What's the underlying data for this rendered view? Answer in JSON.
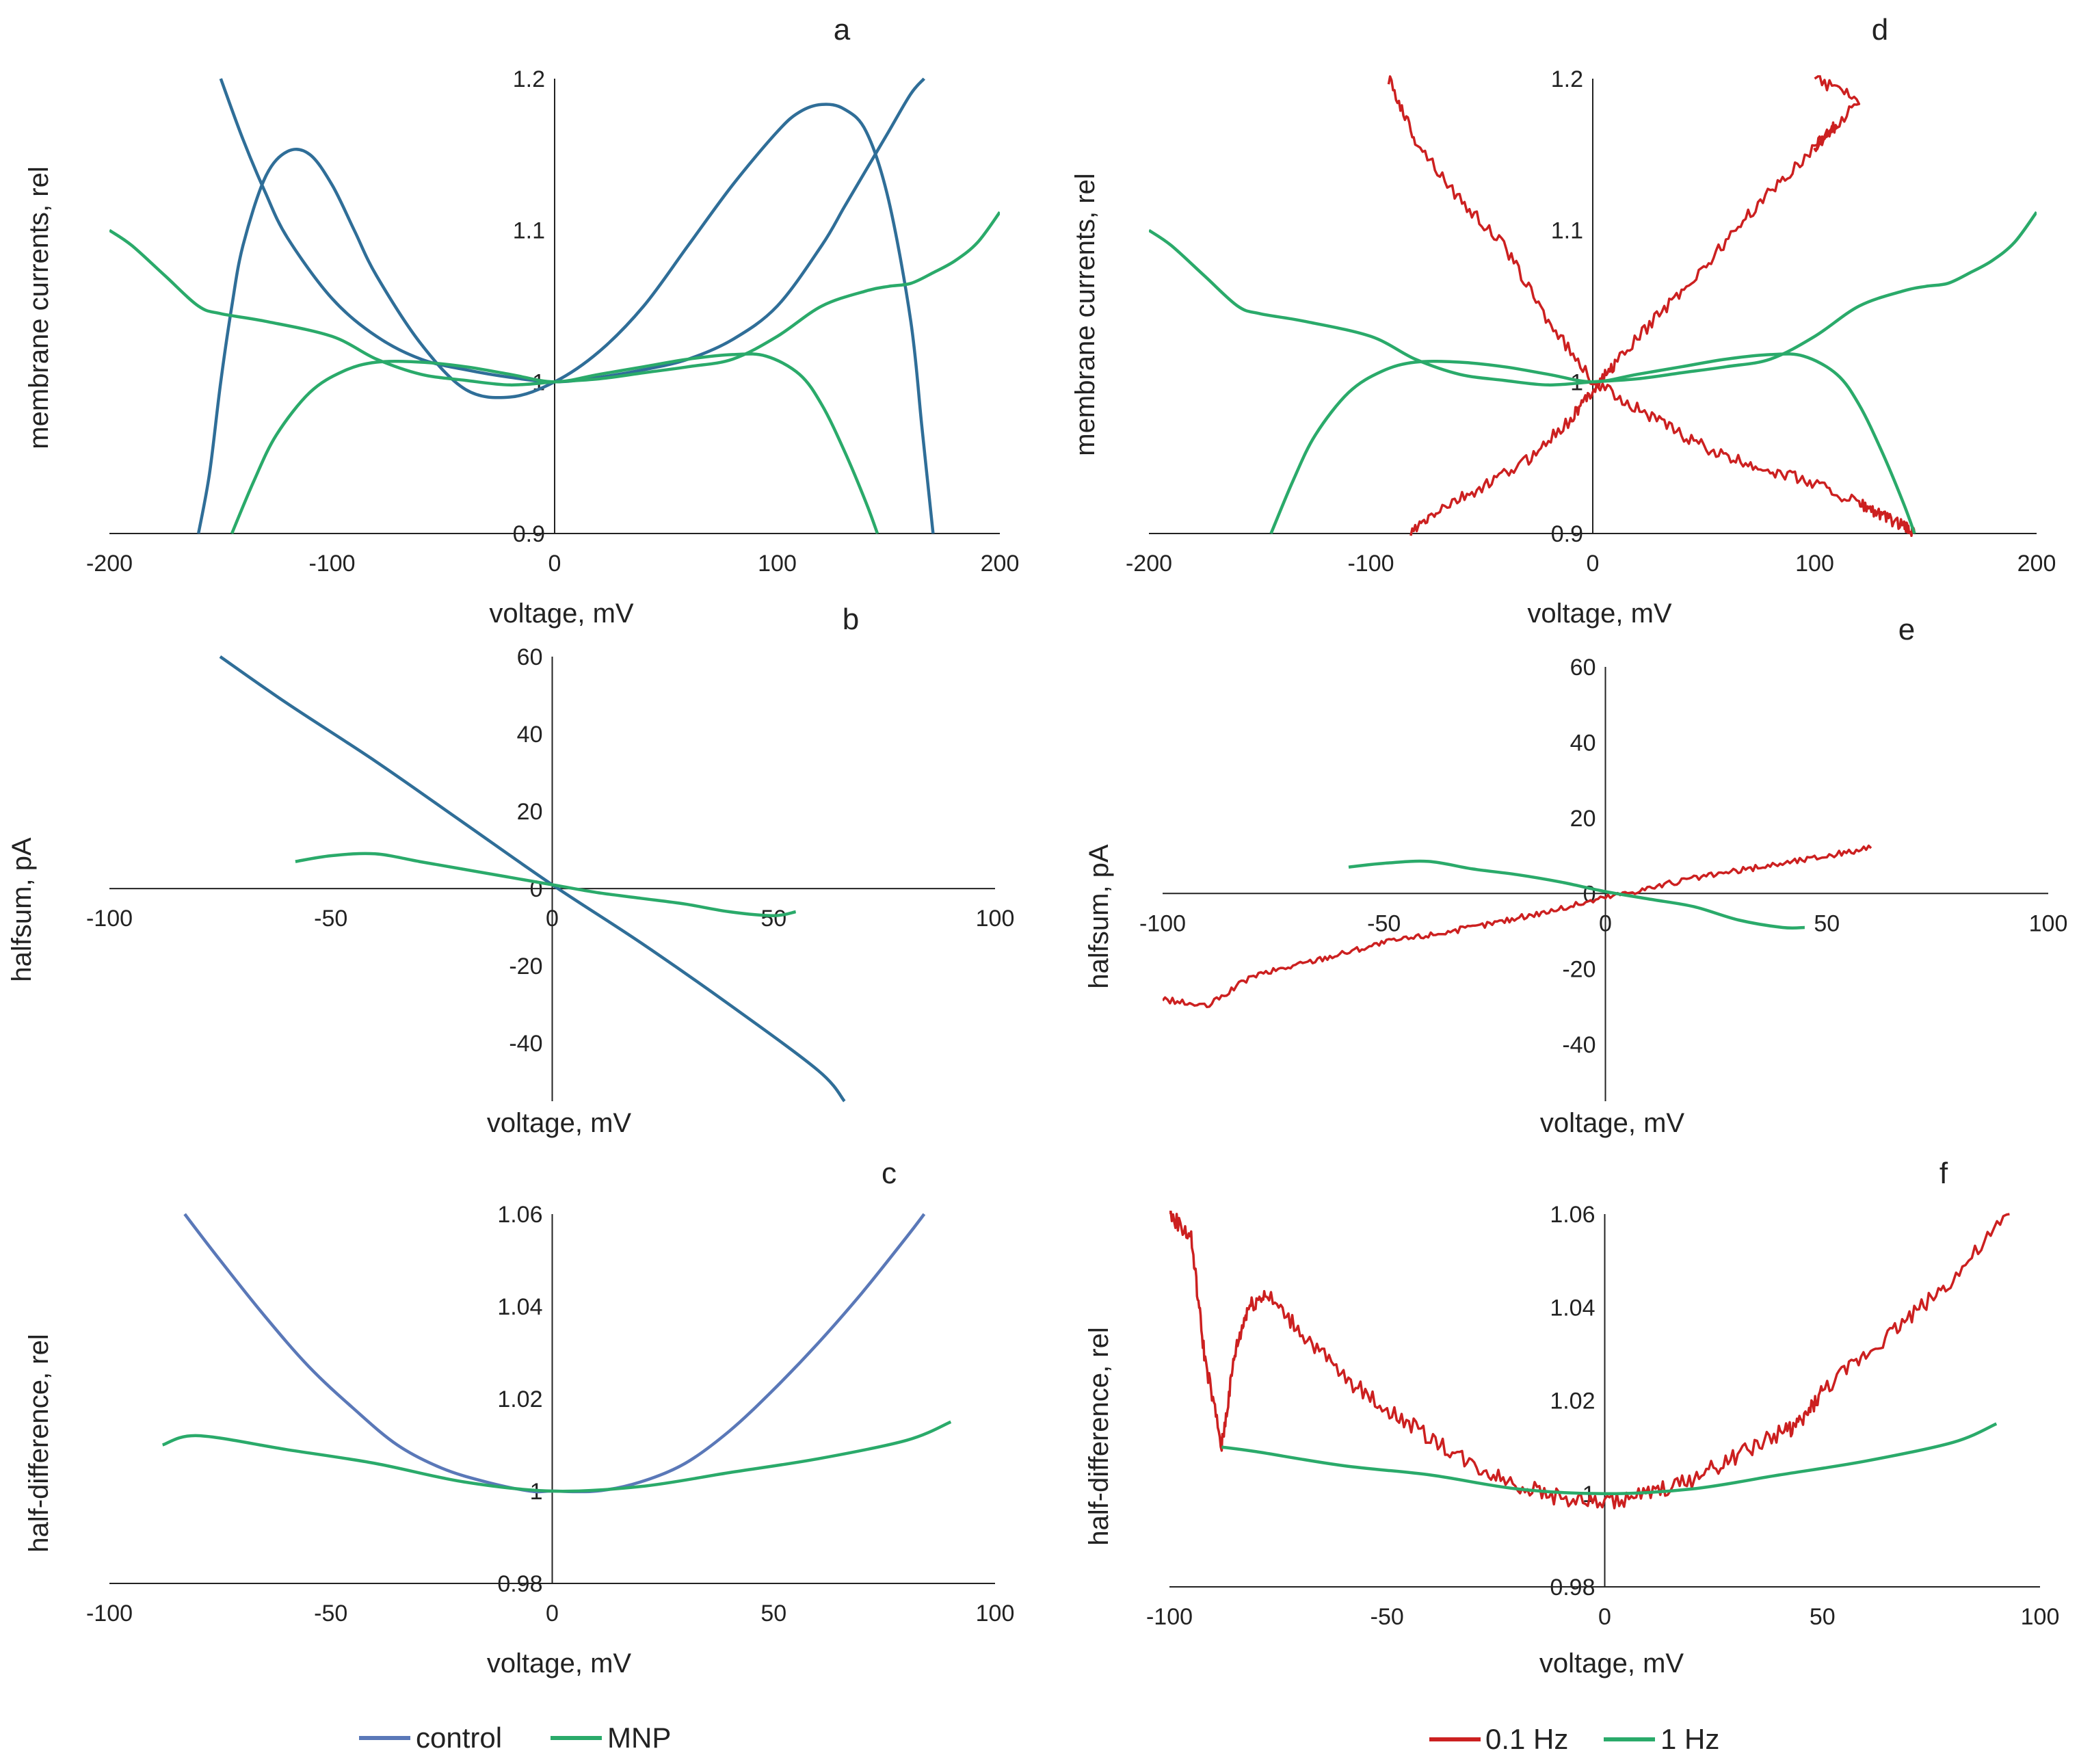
{
  "colors": {
    "control": "#2f6e98",
    "control_light": "#5a78b8",
    "mnp": "#2aaa6a",
    "hz01": "#cc2020",
    "hz1": "#2aaa6a",
    "axis": "#222222"
  },
  "legends": {
    "left": [
      {
        "label": "control",
        "color": "#5a78b8"
      },
      {
        "label": "MNP",
        "color": "#2aaa6a"
      }
    ],
    "right": [
      {
        "label": "0.1 Hz",
        "color": "#cc2020"
      },
      {
        "label": "1 Hz",
        "color": "#2aaa6a"
      }
    ]
  },
  "chart_data": [
    {
      "panel": "a",
      "type": "line",
      "xlabel": "voltage, mV",
      "ylabel": "membrane currents, rel",
      "xlim": [
        -200,
        200
      ],
      "ylim": [
        0.9,
        1.2
      ],
      "xticks": [
        "-200",
        "-100",
        "0",
        "100",
        "200"
      ],
      "yticks": [
        "0.9",
        "1",
        "1.1",
        "1.2"
      ],
      "series": [
        {
          "name": "control",
          "color": "#2f6e98",
          "x": [
            -160,
            -155,
            -150,
            -145,
            -140,
            -130,
            -120,
            -110,
            -100,
            -90,
            -80,
            -60,
            -40,
            -20,
            0,
            20,
            40,
            60,
            80,
            100,
            110,
            120,
            130,
            140,
            150,
            160,
            165,
            170
          ],
          "y": [
            0.9,
            0.94,
            1.0,
            1.05,
            1.09,
            1.135,
            1.152,
            1.15,
            1.13,
            1.1,
            1.07,
            1.025,
            0.995,
            0.99,
            1.0,
            1.02,
            1.05,
            1.09,
            1.13,
            1.165,
            1.178,
            1.183,
            1.18,
            1.165,
            1.12,
            1.04,
            0.97,
            0.9
          ]
        },
        {
          "name": "control",
          "color": "#2f6e98",
          "x": [
            -150,
            -140,
            -130,
            -120,
            -100,
            -80,
            -60,
            -40,
            -20,
            0,
            20,
            40,
            60,
            80,
            100,
            120,
            130,
            140,
            150,
            160,
            166
          ],
          "y": [
            1.2,
            1.16,
            1.125,
            1.095,
            1.055,
            1.03,
            1.015,
            1.008,
            1.003,
            1.0,
            1.003,
            1.008,
            1.015,
            1.028,
            1.05,
            1.09,
            1.115,
            1.14,
            1.165,
            1.19,
            1.2
          ]
        },
        {
          "name": "MNP",
          "color": "#2aaa6a",
          "x": [
            -200,
            -190,
            -175,
            -160,
            -150,
            -130,
            -100,
            -80,
            -60,
            -40,
            -20,
            0,
            20,
            40,
            60,
            80,
            100,
            120,
            140,
            150,
            160,
            170,
            180,
            190,
            200
          ],
          "y": [
            1.1,
            1.09,
            1.07,
            1.05,
            1.045,
            1.04,
            1.03,
            1.015,
            1.005,
            1.001,
            0.998,
            1.0,
            1.002,
            1.006,
            1.01,
            1.015,
            1.03,
            1.05,
            1.06,
            1.063,
            1.065,
            1.072,
            1.08,
            1.092,
            1.112
          ]
        },
        {
          "name": "MNP",
          "color": "#2aaa6a",
          "x": [
            -145,
            -135,
            -125,
            -110,
            -95,
            -80,
            -60,
            -40,
            -20,
            0,
            20,
            40,
            60,
            80,
            95,
            110,
            120,
            130,
            140,
            145
          ],
          "y": [
            0.9,
            0.935,
            0.965,
            0.993,
            1.007,
            1.013,
            1.013,
            1.01,
            1.005,
            1.0,
            1.005,
            1.01,
            1.015,
            1.018,
            1.017,
            1.005,
            0.985,
            0.955,
            0.92,
            0.9
          ]
        }
      ]
    },
    {
      "panel": "b",
      "type": "line",
      "xlabel": "voltage, mV",
      "ylabel": "halfsum, pA",
      "xlim": [
        -100,
        100
      ],
      "ylim": [
        -55,
        60
      ],
      "xticks": [
        "-100",
        "-50",
        "0",
        "50",
        "100"
      ],
      "yticks": [
        "-40",
        "-20",
        "0",
        "20",
        "40",
        "60"
      ],
      "series": [
        {
          "name": "control",
          "color": "#2f6e98",
          "x": [
            -75,
            -60,
            -40,
            -20,
            0,
            20,
            40,
            60,
            66
          ],
          "y": [
            60,
            48,
            33,
            17,
            1,
            -14,
            -30,
            -47,
            -55
          ]
        },
        {
          "name": "MNP",
          "color": "#2aaa6a",
          "x": [
            -58,
            -50,
            -40,
            -30,
            -20,
            -10,
            0,
            10,
            20,
            30,
            40,
            50,
            55
          ],
          "y": [
            7,
            8.5,
            9,
            7,
            5,
            3,
            1,
            -1,
            -2.5,
            -4,
            -6,
            -7,
            -6
          ]
        }
      ]
    },
    {
      "panel": "c",
      "type": "line",
      "xlabel": "voltage, mV",
      "ylabel": "half-difference, rel",
      "xlim": [
        -100,
        100
      ],
      "ylim": [
        0.98,
        1.06
      ],
      "xticks": [
        "-100",
        "-50",
        "0",
        "50",
        "100"
      ],
      "yticks": [
        "0.98",
        "1",
        "1.02",
        "1.04",
        "1.06"
      ],
      "series": [
        {
          "name": "control",
          "color": "#5a78b8",
          "x": [
            -83,
            -75,
            -65,
            -55,
            -45,
            -35,
            -25,
            -15,
            -5,
            0,
            10,
            20,
            30,
            40,
            50,
            60,
            70,
            80,
            84
          ],
          "y": [
            1.06,
            1.05,
            1.038,
            1.027,
            1.018,
            1.01,
            1.005,
            1.002,
            1.0,
            1.0,
            1.0,
            1.002,
            1.006,
            1.013,
            1.022,
            1.032,
            1.043,
            1.055,
            1.06
          ]
        },
        {
          "name": "MNP",
          "color": "#2aaa6a",
          "x": [
            -88,
            -80,
            -60,
            -40,
            -20,
            0,
            20,
            40,
            60,
            80,
            90
          ],
          "y": [
            1.01,
            1.012,
            1.009,
            1.006,
            1.002,
            1.0,
            1.001,
            1.004,
            1.007,
            1.011,
            1.015
          ]
        }
      ]
    },
    {
      "panel": "d",
      "type": "line",
      "xlabel": "voltage, mV",
      "ylabel": "membrane currents, rel",
      "xlim": [
        -200,
        200
      ],
      "ylim": [
        0.9,
        1.2
      ],
      "xticks": [
        "-200",
        "-100",
        "0",
        "100",
        "200"
      ],
      "yticks": [
        "0.9",
        "1",
        "1.1",
        "1.2"
      ],
      "series": [
        {
          "name": "0.1 Hz",
          "color": "#cc2020",
          "noise": 0.004,
          "x": [
            -92,
            -80,
            -60,
            -40,
            -20,
            0,
            20,
            40,
            60,
            80,
            100,
            120,
            130,
            140,
            145
          ],
          "y": [
            1.2,
            1.16,
            1.12,
            1.09,
            1.04,
            1.0,
            0.983,
            0.965,
            0.95,
            0.942,
            0.933,
            0.92,
            0.912,
            0.905,
            0.9
          ]
        },
        {
          "name": "0.1 Hz",
          "color": "#cc2020",
          "noise": 0.004,
          "x": [
            -82,
            -70,
            -50,
            -30,
            -10,
            0,
            10,
            30,
            50,
            70,
            90,
            110,
            100,
            120,
            100
          ],
          "y": [
            0.9,
            0.915,
            0.93,
            0.948,
            0.975,
            0.995,
            1.012,
            1.045,
            1.075,
            1.11,
            1.14,
            1.17,
            1.155,
            1.185,
            1.2
          ]
        },
        {
          "name": "1 Hz",
          "color": "#2aaa6a",
          "x": [
            -200,
            -190,
            -175,
            -160,
            -150,
            -130,
            -100,
            -80,
            -60,
            -40,
            -20,
            0,
            20,
            40,
            60,
            80,
            100,
            120,
            140,
            150,
            160,
            170,
            180,
            190,
            200
          ],
          "y": [
            1.1,
            1.09,
            1.07,
            1.05,
            1.045,
            1.04,
            1.03,
            1.015,
            1.005,
            1.001,
            0.998,
            1.0,
            1.002,
            1.006,
            1.01,
            1.015,
            1.03,
            1.05,
            1.06,
            1.063,
            1.065,
            1.072,
            1.08,
            1.092,
            1.112
          ]
        },
        {
          "name": "1 Hz",
          "color": "#2aaa6a",
          "x": [
            -145,
            -135,
            -125,
            -110,
            -95,
            -80,
            -60,
            -40,
            -20,
            0,
            20,
            40,
            60,
            80,
            95,
            110,
            120,
            130,
            140,
            145
          ],
          "y": [
            0.9,
            0.935,
            0.965,
            0.993,
            1.007,
            1.013,
            1.013,
            1.01,
            1.005,
            1.0,
            1.005,
            1.01,
            1.015,
            1.018,
            1.017,
            1.005,
            0.985,
            0.955,
            0.92,
            0.9
          ]
        }
      ]
    },
    {
      "panel": "e",
      "type": "line",
      "xlabel": "voltage, mV",
      "ylabel": "halfsum, pA",
      "xlim": [
        -100,
        100
      ],
      "ylim": [
        -55,
        60
      ],
      "xticks": [
        "-100",
        "-50",
        "0",
        "50",
        "100"
      ],
      "yticks": [
        "-40",
        "-20",
        "0",
        "20",
        "40",
        "60"
      ],
      "series": [
        {
          "name": "0.1 Hz",
          "color": "#cc2020",
          "noise": 0.8,
          "x": [
            -100,
            -90,
            -80,
            -70,
            -60,
            -50,
            -40,
            -30,
            -20,
            -10,
            0,
            10,
            20,
            30,
            40,
            50,
            60
          ],
          "y": [
            -28,
            -30,
            -22,
            -19,
            -16,
            -13,
            -11,
            -9,
            -6.5,
            -4,
            -1,
            1.5,
            4,
            6,
            8,
            10,
            12
          ]
        },
        {
          "name": "1 Hz",
          "color": "#2aaa6a",
          "x": [
            -58,
            -50,
            -40,
            -30,
            -20,
            -10,
            0,
            10,
            20,
            30,
            40,
            45
          ],
          "y": [
            7,
            8,
            8.5,
            6.5,
            5,
            3,
            0.5,
            -1.5,
            -3.5,
            -7,
            -9,
            -9
          ]
        }
      ]
    },
    {
      "panel": "f",
      "type": "line",
      "xlabel": "voltage, mV",
      "ylabel": "half-difference, rel",
      "xlim": [
        -100,
        100
      ],
      "ylim": [
        0.98,
        1.06
      ],
      "xticks": [
        "-100",
        "-50",
        "0",
        "50",
        "100"
      ],
      "yticks": [
        "0.98",
        "1",
        "1.02",
        "1.04",
        "1.06"
      ],
      "series": [
        {
          "name": "0.1 Hz",
          "color": "#cc2020",
          "noise": 0.0018,
          "x": [
            -100,
            -95,
            -92,
            -88,
            -85,
            -82,
            -78,
            -70,
            -60,
            -50,
            -40,
            -30,
            -20,
            -10,
            0,
            10,
            20,
            30,
            40,
            45,
            50,
            60,
            70,
            80,
            93
          ],
          "y": [
            1.06,
            1.055,
            1.03,
            1.01,
            1.03,
            1.04,
            1.043,
            1.035,
            1.025,
            1.018,
            1.012,
            1.006,
            1.002,
            0.999,
            0.998,
            1.0,
            1.003,
            1.008,
            1.013,
            1.015,
            1.022,
            1.03,
            1.038,
            1.046,
            1.06
          ]
        },
        {
          "name": "1 Hz",
          "color": "#2aaa6a",
          "x": [
            -88,
            -80,
            -60,
            -40,
            -20,
            0,
            20,
            40,
            60,
            80,
            90
          ],
          "y": [
            1.01,
            1.009,
            1.006,
            1.004,
            1.001,
            1.0,
            1.001,
            1.004,
            1.007,
            1.011,
            1.015
          ]
        }
      ]
    }
  ]
}
